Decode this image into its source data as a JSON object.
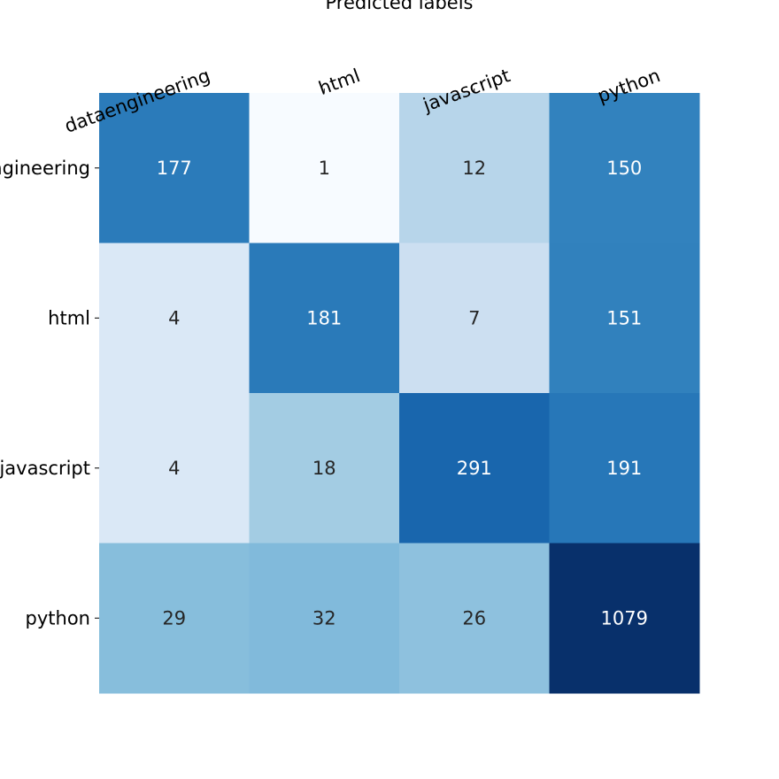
{
  "chart_data": {
    "type": "heatmap",
    "title": "",
    "xlabel": "Predicted labels",
    "ylabel": "",
    "x_categories": [
      "dataengineering",
      "html",
      "javascript",
      "python"
    ],
    "y_categories": [
      "dataengineering",
      "html",
      "javascript",
      "python"
    ],
    "values": [
      [
        177,
        1,
        12,
        150
      ],
      [
        4,
        181,
        7,
        151
      ],
      [
        4,
        18,
        291,
        191
      ],
      [
        29,
        32,
        26,
        1079
      ]
    ],
    "colormap": "Blues",
    "color_scale_note": "row 0-2 vmax ~ 300, row 3 vmax ~ 1079",
    "colors": {
      "light_text": "#ffffff",
      "dark_text": "#262626",
      "tick": "#000000"
    },
    "colorbar": false,
    "grid": false
  }
}
